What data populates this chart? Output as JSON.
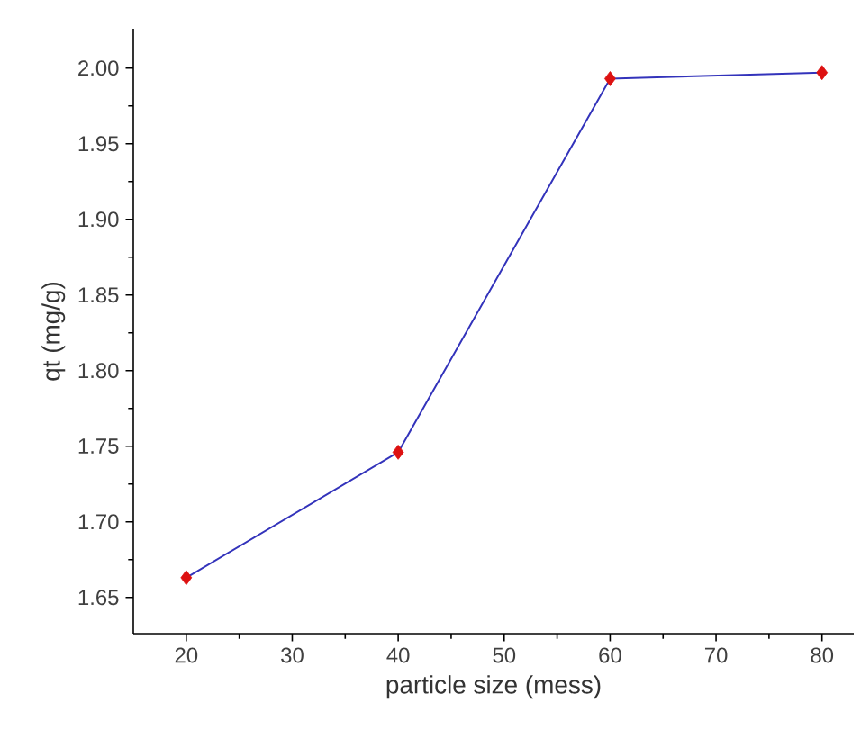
{
  "chart_data": {
    "type": "line",
    "xlabel": "particle size (mess)",
    "ylabel": "qt (mg/g)",
    "x": [
      20,
      40,
      60,
      80
    ],
    "series": [
      {
        "color": "#3333bb",
        "colors": [
          "#dd1111",
          "#dd1111",
          "#dd1111",
          "#dd1111"
        ],
        "values": [
          1.663,
          1.746,
          1.993,
          1.997
        ]
      }
    ],
    "marker": "diamond",
    "line_style": "solid",
    "grid": false,
    "xlim": [
      15,
      83
    ],
    "xticks": [
      20,
      30,
      40,
      50,
      60,
      70,
      80
    ],
    "ylim": [
      1.626,
      2.026
    ],
    "yticks": [
      {
        "value": 1.65,
        "label": "1.65"
      },
      {
        "value": 1.7,
        "label": "1.70"
      },
      {
        "value": 1.75,
        "label": "1.75"
      },
      {
        "value": 1.8,
        "label": "1.80"
      },
      {
        "value": 1.85,
        "label": "1.85"
      },
      {
        "value": 1.9,
        "label": "1.90"
      },
      {
        "value": 1.95,
        "label": "1.95"
      },
      {
        "value": 2.0,
        "label": "2.00"
      }
    ]
  }
}
